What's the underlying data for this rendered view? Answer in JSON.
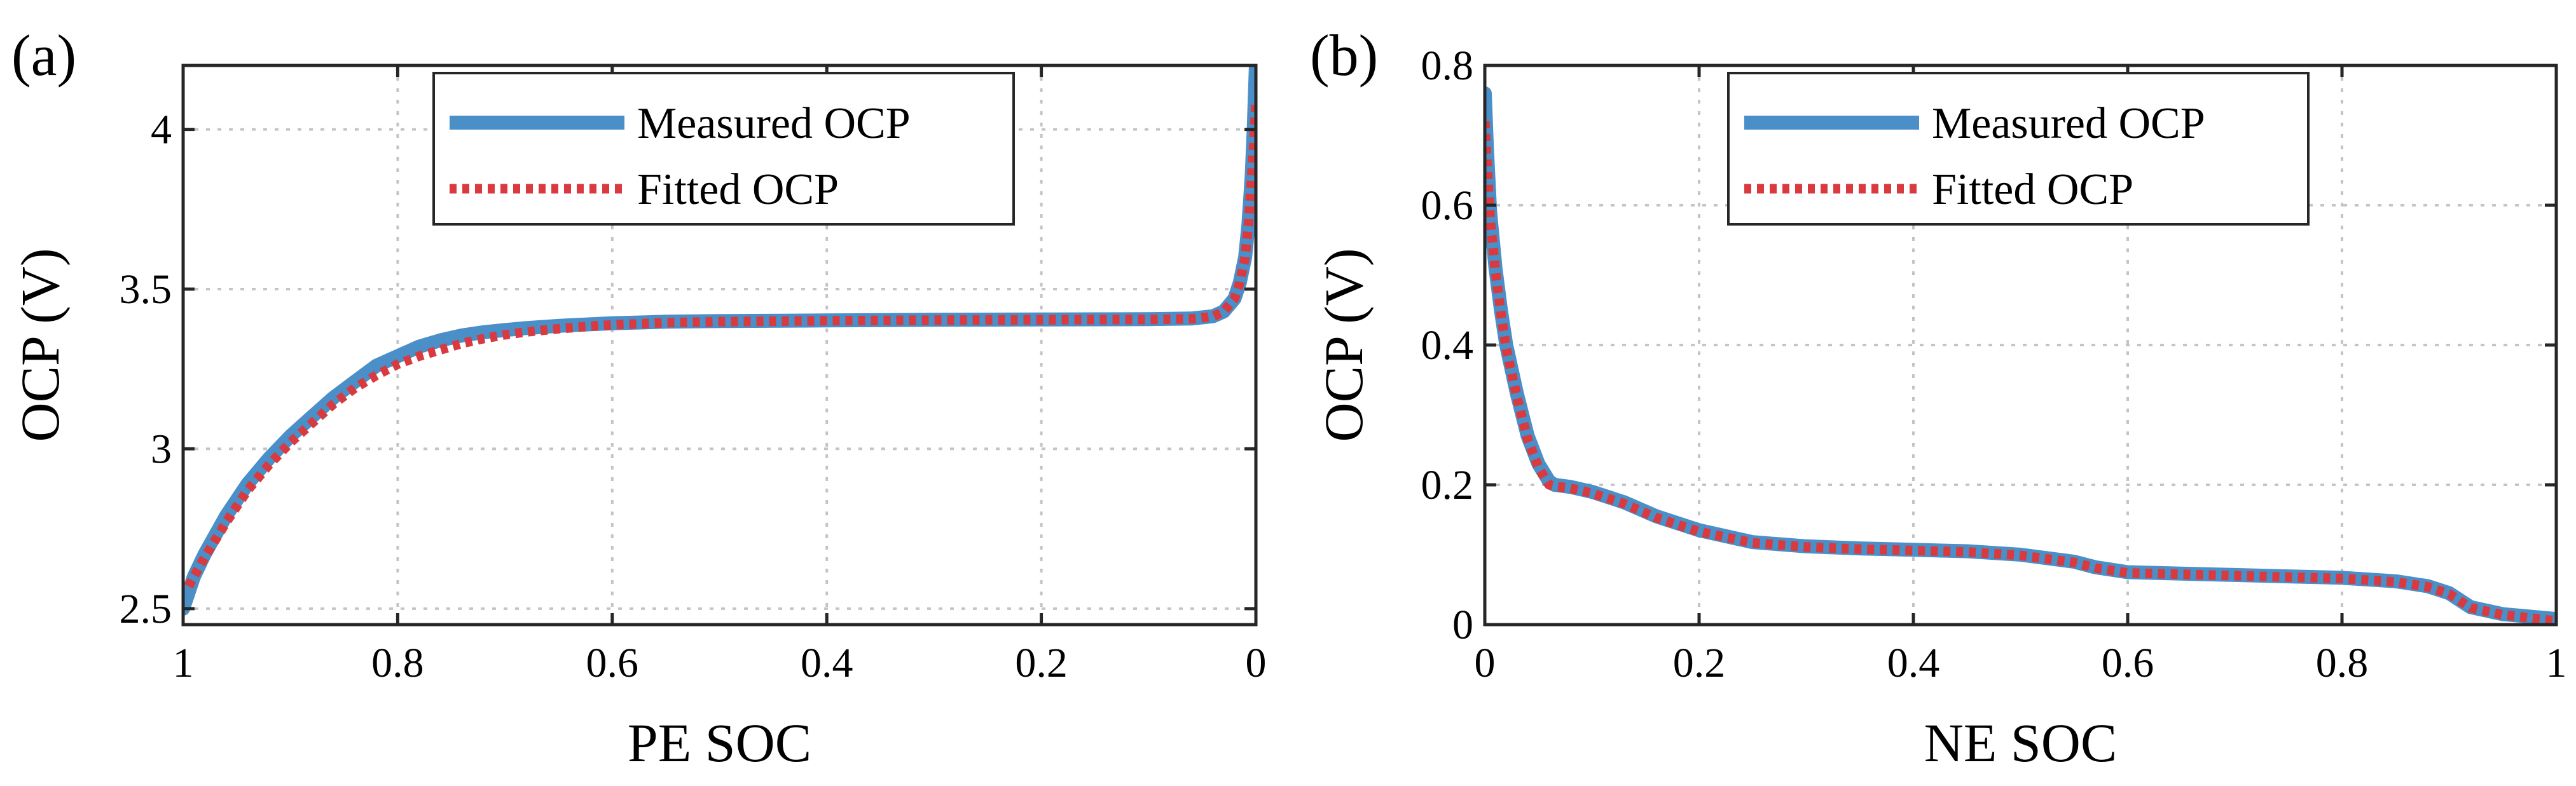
{
  "chart_data": [
    {
      "type": "line",
      "panel_label": "(a)",
      "xlabel": "PE SOC",
      "ylabel": "OCP (V)",
      "xlim": [
        0,
        1
      ],
      "x_reversed": true,
      "ylim": [
        2.45,
        4.2
      ],
      "xticks": [
        1,
        0.8,
        0.6,
        0.4,
        0.2,
        0
      ],
      "xtick_labels": [
        "1",
        "0.8",
        "0.6",
        "0.4",
        "0.2",
        "0"
      ],
      "yticks": [
        2.5,
        3,
        3.5,
        4
      ],
      "ytick_labels": [
        "2.5",
        "3",
        "3.5",
        "4"
      ],
      "grid": true,
      "legend": {
        "position": "top-right",
        "entries": [
          "Measured OCP",
          "Fitted OCP"
        ]
      },
      "series": [
        {
          "name": "Measured OCP",
          "color": "#4a8fc7",
          "style": "solid",
          "x": [
            1.0,
            0.99,
            0.98,
            0.96,
            0.94,
            0.92,
            0.9,
            0.88,
            0.86,
            0.84,
            0.82,
            0.8,
            0.78,
            0.76,
            0.74,
            0.72,
            0.7,
            0.68,
            0.65,
            0.62,
            0.6,
            0.55,
            0.5,
            0.4,
            0.3,
            0.2,
            0.1,
            0.06,
            0.04,
            0.03,
            0.02,
            0.015,
            0.01,
            0.007,
            0.004,
            0.002,
            0.0
          ],
          "y": [
            2.5,
            2.6,
            2.67,
            2.79,
            2.89,
            2.97,
            3.04,
            3.1,
            3.16,
            3.21,
            3.26,
            3.29,
            3.32,
            3.34,
            3.355,
            3.365,
            3.372,
            3.378,
            3.385,
            3.39,
            3.393,
            3.398,
            3.4,
            3.402,
            3.404,
            3.405,
            3.406,
            3.408,
            3.415,
            3.43,
            3.47,
            3.52,
            3.6,
            3.7,
            3.85,
            4.0,
            4.2
          ]
        },
        {
          "name": "Fitted OCP",
          "color": "#d93a3f",
          "style": "dotted",
          "x": [
            0.995,
            0.98,
            0.96,
            0.94,
            0.92,
            0.9,
            0.88,
            0.86,
            0.84,
            0.82,
            0.8,
            0.78,
            0.76,
            0.74,
            0.72,
            0.7,
            0.68,
            0.65,
            0.62,
            0.6,
            0.55,
            0.5,
            0.4,
            0.3,
            0.2,
            0.1,
            0.06,
            0.04,
            0.03,
            0.02,
            0.015,
            0.01,
            0.007,
            0.004,
            0.002,
            0.0
          ],
          "y": [
            2.57,
            2.66,
            2.77,
            2.87,
            2.95,
            3.02,
            3.08,
            3.14,
            3.19,
            3.23,
            3.265,
            3.29,
            3.31,
            3.33,
            3.345,
            3.357,
            3.366,
            3.376,
            3.384,
            3.388,
            3.395,
            3.398,
            3.401,
            3.403,
            3.404,
            3.405,
            3.407,
            3.414,
            3.43,
            3.47,
            3.52,
            3.6,
            3.7,
            3.85,
            3.95,
            4.08
          ]
        }
      ]
    },
    {
      "type": "line",
      "panel_label": "(b)",
      "xlabel": "NE SOC",
      "ylabel": "OCP (V)",
      "xlim": [
        0,
        1
      ],
      "x_reversed": false,
      "ylim": [
        0,
        0.8
      ],
      "xticks": [
        0,
        0.2,
        0.4,
        0.6,
        0.8,
        1
      ],
      "xtick_labels": [
        "0",
        "0.2",
        "0.4",
        "0.6",
        "0.8",
        "1"
      ],
      "yticks": [
        0,
        0.2,
        0.4,
        0.6,
        0.8
      ],
      "ytick_labels": [
        "0",
        "0.2",
        "0.4",
        "0.6",
        "0.8"
      ],
      "grid": true,
      "legend": {
        "position": "top-right",
        "entries": [
          "Measured OCP",
          "Fitted OCP"
        ]
      },
      "series": [
        {
          "name": "Measured OCP",
          "color": "#4a8fc7",
          "style": "solid",
          "x": [
            0.0,
            0.002,
            0.005,
            0.01,
            0.015,
            0.02,
            0.03,
            0.04,
            0.05,
            0.06,
            0.065,
            0.08,
            0.1,
            0.13,
            0.16,
            0.2,
            0.25,
            0.3,
            0.35,
            0.4,
            0.45,
            0.5,
            0.55,
            0.57,
            0.6,
            0.65,
            0.7,
            0.75,
            0.8,
            0.85,
            0.88,
            0.9,
            0.92,
            0.95,
            1.0
          ],
          "y": [
            0.76,
            0.68,
            0.59,
            0.51,
            0.45,
            0.4,
            0.33,
            0.27,
            0.23,
            0.205,
            0.2,
            0.197,
            0.19,
            0.175,
            0.155,
            0.135,
            0.118,
            0.112,
            0.109,
            0.107,
            0.105,
            0.1,
            0.09,
            0.082,
            0.075,
            0.073,
            0.071,
            0.069,
            0.067,
            0.062,
            0.055,
            0.045,
            0.025,
            0.015,
            0.008
          ]
        },
        {
          "name": "Fitted OCP",
          "color": "#d93a3f",
          "style": "dotted",
          "x": [
            0.0,
            0.002,
            0.005,
            0.01,
            0.015,
            0.02,
            0.03,
            0.04,
            0.05,
            0.06,
            0.065,
            0.08,
            0.1,
            0.13,
            0.16,
            0.2,
            0.25,
            0.3,
            0.35,
            0.4,
            0.45,
            0.5,
            0.55,
            0.57,
            0.6,
            0.65,
            0.7,
            0.75,
            0.8,
            0.85,
            0.88,
            0.9,
            0.92,
            0.95,
            1.0
          ],
          "y": [
            0.72,
            0.66,
            0.58,
            0.505,
            0.445,
            0.395,
            0.325,
            0.265,
            0.225,
            0.2,
            0.198,
            0.195,
            0.188,
            0.173,
            0.153,
            0.133,
            0.117,
            0.111,
            0.108,
            0.106,
            0.104,
            0.099,
            0.089,
            0.081,
            0.074,
            0.072,
            0.07,
            0.068,
            0.066,
            0.061,
            0.054,
            0.044,
            0.024,
            0.014,
            0.005
          ]
        }
      ]
    }
  ]
}
